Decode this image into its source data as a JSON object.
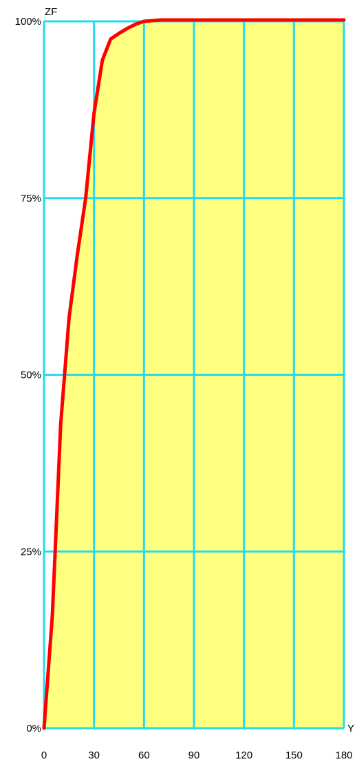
{
  "chart_data": {
    "type": "area",
    "xlabel": "Y",
    "ylabel": "ZF",
    "xlim": [
      0,
      180
    ],
    "ylim": [
      0,
      100
    ],
    "x_ticks": [
      0,
      30,
      60,
      90,
      120,
      150,
      180
    ],
    "x_tick_labels": [
      "0",
      "30",
      "60",
      "90",
      "120",
      "150",
      "180"
    ],
    "y_ticks": [
      0,
      25,
      50,
      75,
      100
    ],
    "y_tick_labels": [
      "0%",
      "25%",
      "50%",
      "75%",
      "100%"
    ],
    "grid": true,
    "series": [
      {
        "x": [
          0,
          5,
          10,
          15,
          20,
          25,
          30,
          35,
          40,
          45,
          50,
          55,
          60,
          65,
          70,
          80,
          90,
          120,
          150,
          180
        ],
        "y": [
          0,
          16,
          43,
          58,
          67,
          75,
          87,
          94.5,
          97.5,
          98.3,
          99.0,
          99.6,
          100,
          100.1,
          100.2,
          100.2,
          100.2,
          100.2,
          100.2,
          100.2
        ],
        "line_color": "#ff0000",
        "fill_color": "#ffff80"
      }
    ],
    "grid_color": "#22ddee",
    "background_color": "#ffffff"
  }
}
